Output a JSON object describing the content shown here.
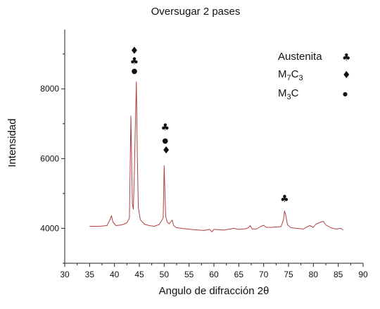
{
  "chart_data": {
    "type": "line",
    "title": "Oversugar 2 pases",
    "xlabel": "Angulo de difracción 2θ",
    "ylabel": "Intensidad",
    "xlim": [
      30,
      90
    ],
    "ylim": [
      3000,
      9700
    ],
    "x_ticks": [
      30,
      35,
      40,
      45,
      50,
      55,
      60,
      65,
      70,
      75,
      80,
      85,
      90
    ],
    "x_tick_labels": [
      "30",
      "35",
      "40",
      "45",
      "50",
      "55",
      "60",
      "65",
      "70",
      "75",
      "80",
      "85",
      "90"
    ],
    "y_ticks": [
      4000,
      6000,
      8000
    ],
    "y_tick_labels": [
      "4000",
      "6000",
      "8000"
    ],
    "line_color": "#b04040",
    "series": [
      {
        "x": [
          35,
          37,
          38.5,
          39.1,
          39.4,
          39.7,
          40.3,
          41.5,
          42.5,
          43.0,
          43.3,
          43.6,
          43.8,
          44.0,
          44.2,
          44.4,
          44.6,
          44.8,
          45.2,
          46.0,
          47.0,
          48.0,
          49.0,
          49.8,
          50.0,
          50.15,
          50.3,
          50.6,
          51.0,
          51.4,
          51.6,
          51.9,
          52.5,
          54.0,
          56.0,
          58.0,
          59.2,
          59.6,
          60.0,
          62.0,
          64.0,
          65.0,
          66.5,
          67.0,
          67.3,
          67.7,
          68.5,
          69.5,
          70.0,
          70.5,
          71.5,
          72.5,
          73.5,
          74.0,
          74.2,
          74.4,
          74.8,
          75.5,
          76.5,
          78.0,
          78.8,
          79.3,
          80.0,
          80.5,
          81.0,
          81.5,
          82.0,
          82.5,
          83.5,
          84.5,
          85.5,
          86
        ],
        "y": [
          4060,
          4060,
          4080,
          4250,
          4360,
          4180,
          4080,
          4100,
          4160,
          4300,
          7220,
          4700,
          4550,
          5600,
          6900,
          8200,
          6000,
          4600,
          4250,
          4120,
          4080,
          4060,
          4110,
          4300,
          5800,
          5000,
          4350,
          4180,
          4130,
          4200,
          4240,
          4080,
          4020,
          3990,
          3960,
          3940,
          3970,
          3900,
          3970,
          3950,
          4000,
          3970,
          3990,
          4030,
          4080,
          3980,
          3980,
          4060,
          4090,
          4030,
          4030,
          4040,
          4050,
          4250,
          4500,
          4400,
          4100,
          4020,
          4000,
          3980,
          4050,
          4080,
          4030,
          4120,
          4150,
          4180,
          4200,
          4100,
          4020,
          3980,
          4000,
          3950
        ]
      }
    ],
    "peak_markers": [
      {
        "x": 44.0,
        "y": 9000,
        "symbol": "♦"
      },
      {
        "x": 44.0,
        "y": 8700,
        "symbol": "♣"
      },
      {
        "x": 44.0,
        "y": 8450,
        "symbol": "●"
      },
      {
        "x": 50.2,
        "y": 6800,
        "symbol": "♣"
      },
      {
        "x": 50.2,
        "y": 6450,
        "symbol": "●"
      },
      {
        "x": 50.4,
        "y": 6150,
        "symbol": "♦"
      },
      {
        "x": 74.2,
        "y": 4760,
        "symbol": "♣"
      }
    ],
    "legend": {
      "position": "top-right",
      "entries": [
        {
          "label": "Austenita",
          "symbol": "♣"
        },
        {
          "label": "M7C3",
          "symbol": "♦"
        },
        {
          "label": "M3C",
          "symbol": "●"
        }
      ]
    }
  }
}
